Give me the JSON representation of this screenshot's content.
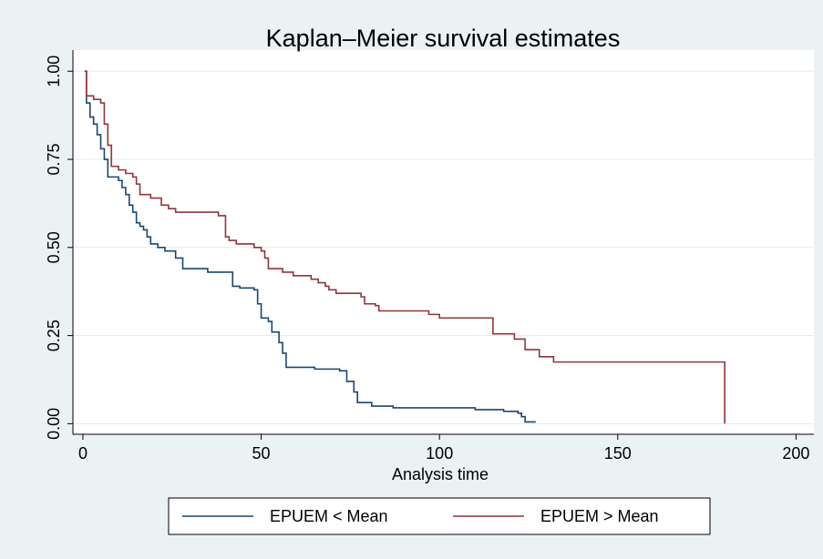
{
  "chart_data": {
    "type": "line",
    "step": "post",
    "title": "Kaplan–Meier survival estimates",
    "x_label": "Analysis time",
    "xlim": [
      -2.8,
      205
    ],
    "ylim": [
      -0.03,
      1.06
    ],
    "xticks": [
      0,
      50,
      100,
      150,
      200
    ],
    "yticks": [
      {
        "value": 0,
        "label": "0.00"
      },
      {
        "value": 0.25,
        "label": "0.25"
      },
      {
        "value": 0.5,
        "label": "0.50"
      },
      {
        "value": 0.75,
        "label": "0.75"
      },
      {
        "value": 1,
        "label": "1.00"
      }
    ],
    "grid": true,
    "legend": "bottom",
    "series": [
      {
        "name": "EPUEM < Mean",
        "color": "#1a476f",
        "x": [
          0.5,
          1,
          2,
          3,
          4,
          5,
          6,
          7,
          10,
          11,
          12,
          13,
          14,
          15,
          16,
          17,
          18,
          19,
          21,
          23,
          26,
          28,
          35,
          42,
          44,
          48,
          49,
          50,
          52,
          53,
          55,
          56,
          57,
          65,
          72,
          74,
          76,
          77,
          81,
          87,
          110,
          118,
          122,
          123,
          124,
          127
        ],
        "values": [
          1.0,
          0.91,
          0.87,
          0.85,
          0.82,
          0.78,
          0.75,
          0.7,
          0.69,
          0.67,
          0.65,
          0.62,
          0.6,
          0.57,
          0.56,
          0.55,
          0.53,
          0.51,
          0.5,
          0.49,
          0.47,
          0.44,
          0.43,
          0.39,
          0.385,
          0.38,
          0.34,
          0.3,
          0.29,
          0.26,
          0.23,
          0.2,
          0.16,
          0.155,
          0.15,
          0.12,
          0.09,
          0.06,
          0.05,
          0.045,
          0.04,
          0.035,
          0.03,
          0.02,
          0.005,
          0.005
        ]
      },
      {
        "name": "EPUEM > Mean",
        "color": "#90353b",
        "x": [
          0.5,
          1,
          3,
          5,
          6,
          7,
          8,
          10,
          12,
          14,
          15,
          16,
          19,
          22,
          24,
          26,
          38,
          40,
          41,
          43,
          48,
          50,
          51,
          52,
          56,
          59,
          64,
          66,
          68,
          69,
          71,
          78,
          79,
          82,
          83,
          97,
          100,
          115,
          121,
          124,
          128,
          132,
          180
        ],
        "values": [
          1.0,
          0.93,
          0.92,
          0.91,
          0.85,
          0.79,
          0.73,
          0.72,
          0.71,
          0.7,
          0.68,
          0.65,
          0.64,
          0.62,
          0.61,
          0.6,
          0.59,
          0.53,
          0.52,
          0.51,
          0.5,
          0.49,
          0.47,
          0.44,
          0.43,
          0.42,
          0.41,
          0.4,
          0.39,
          0.38,
          0.37,
          0.36,
          0.34,
          0.335,
          0.32,
          0.31,
          0.3,
          0.255,
          0.24,
          0.21,
          0.19,
          0.175,
          0
        ]
      }
    ]
  }
}
